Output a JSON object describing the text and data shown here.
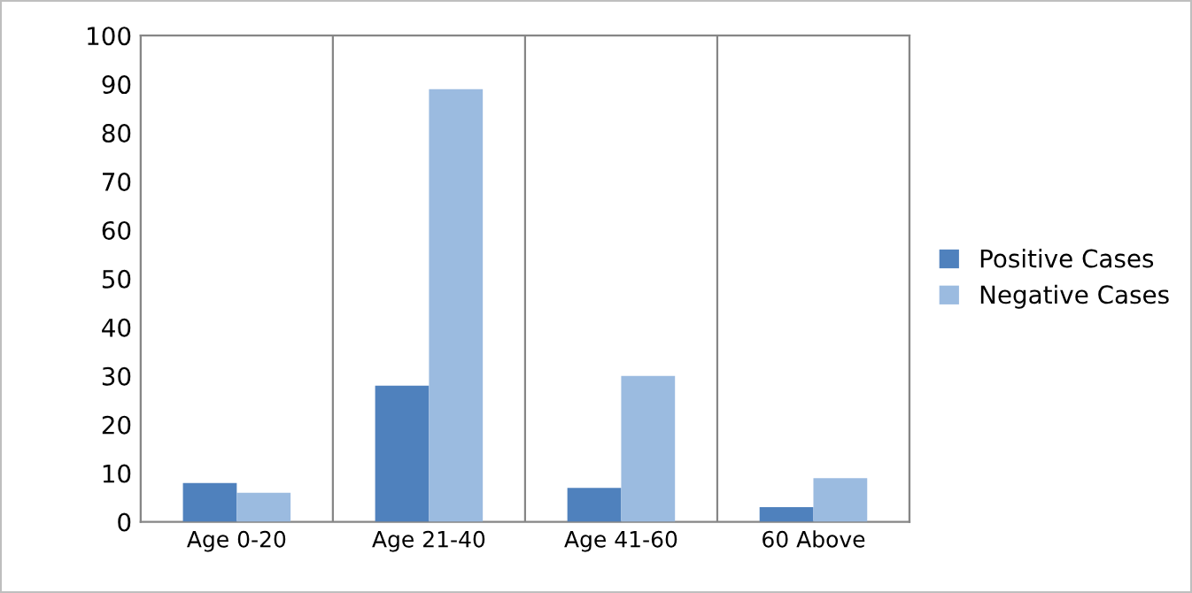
{
  "chart_data": {
    "type": "bar",
    "categories": [
      "Age 0-20",
      "Age 21-40",
      "Age 41-60",
      "60 Above"
    ],
    "series": [
      {
        "name": "Positive Cases",
        "color": "#4f81bd",
        "values": [
          8,
          28,
          7,
          3
        ]
      },
      {
        "name": "Negative Cases",
        "color": "#9bbbe0",
        "values": [
          6,
          89,
          30,
          9
        ]
      }
    ],
    "ylim": [
      0,
      100
    ],
    "yticks": [
      0,
      10,
      20,
      30,
      40,
      50,
      60,
      70,
      80,
      90,
      100
    ],
    "grid": "x",
    "legend": "right"
  }
}
